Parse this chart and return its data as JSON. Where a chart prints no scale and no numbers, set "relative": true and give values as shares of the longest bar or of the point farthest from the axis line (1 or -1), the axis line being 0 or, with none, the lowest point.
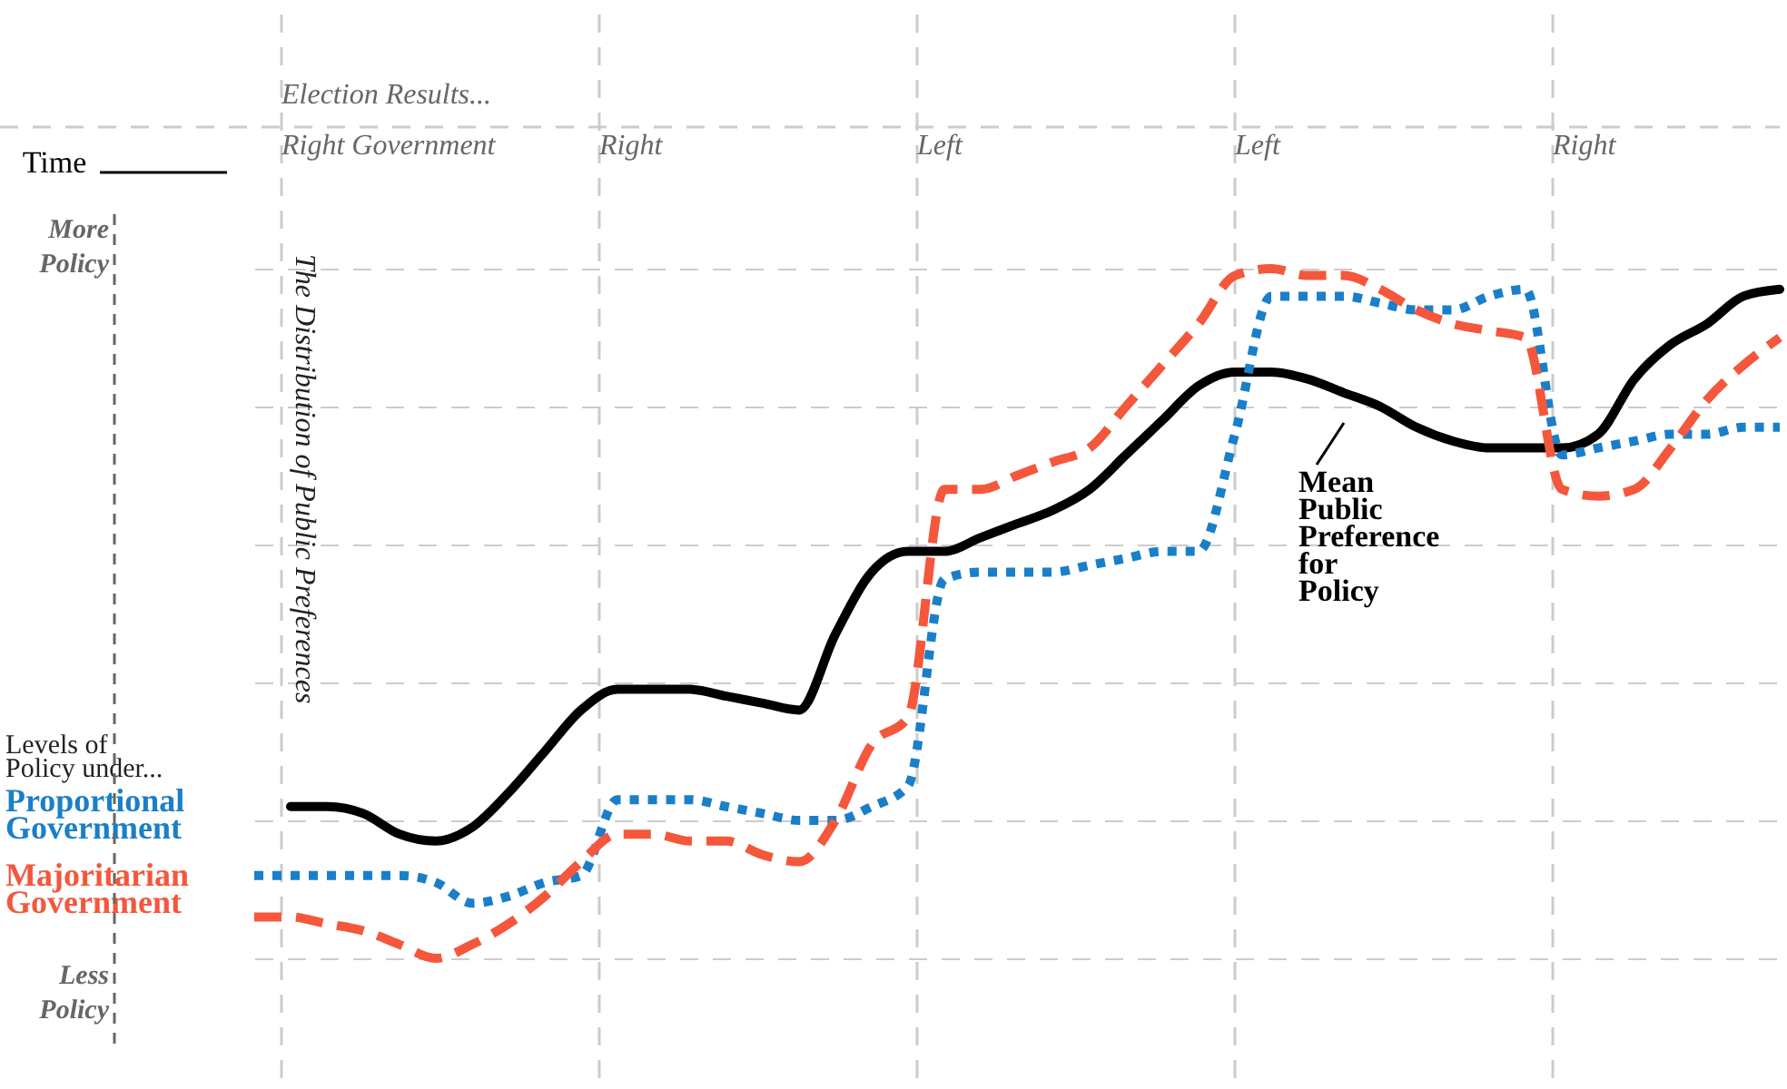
{
  "chart_data": {
    "type": "line",
    "relative": true,
    "grid": true,
    "categories": [
      null,
      null,
      null,
      null,
      null,
      null,
      null,
      null,
      null,
      null,
      null,
      null,
      null,
      null,
      null,
      null,
      null,
      null,
      null,
      null,
      null,
      null,
      null,
      null,
      null,
      null,
      null,
      null,
      null,
      null,
      null,
      null,
      null,
      null,
      null,
      null,
      null,
      null,
      null,
      null,
      null,
      null,
      null
    ],
    "series": [
      {
        "name": "Mean Public Preference for Policy",
        "color": "#000000",
        "line_style": "solid",
        "values": [
          null,
          0.22,
          0.22,
          0.21,
          0.18,
          0.17,
          0.19,
          0.24,
          0.3,
          0.36,
          0.39,
          0.39,
          0.39,
          0.38,
          0.37,
          0.36,
          0.47,
          0.56,
          0.59,
          0.59,
          0.61,
          0.63,
          0.65,
          0.68,
          0.73,
          0.78,
          0.83,
          0.85,
          0.85,
          0.84,
          0.82,
          0.8,
          0.77,
          0.75,
          0.74,
          0.74,
          0.74,
          0.76,
          0.84,
          0.89,
          0.92,
          0.96,
          0.97
        ]
      },
      {
        "name": "Proportional Government",
        "color": "#1a7fc8",
        "line_style": "dotted",
        "values": [
          0.12,
          0.12,
          0.12,
          0.12,
          0.12,
          0.11,
          0.08,
          0.09,
          0.11,
          0.12,
          0.23,
          0.23,
          0.23,
          0.22,
          0.21,
          0.2,
          0.2,
          0.22,
          0.25,
          0.55,
          0.56,
          0.56,
          0.56,
          0.57,
          0.58,
          0.59,
          0.59,
          0.76,
          0.96,
          0.96,
          0.96,
          0.95,
          0.94,
          0.94,
          0.96,
          0.97,
          0.73,
          0.74,
          0.75,
          0.76,
          0.76,
          0.77,
          0.77
        ]
      },
      {
        "name": "Majoritarian Government",
        "color": "#f4573c",
        "line_style": "dashed",
        "values": [
          0.06,
          0.06,
          0.05,
          0.04,
          0.02,
          0,
          0.02,
          0.05,
          0.09,
          0.14,
          0.18,
          0.18,
          0.17,
          0.17,
          0.15,
          0.14,
          0.2,
          0.31,
          0.35,
          0.68,
          0.68,
          0.7,
          0.72,
          0.74,
          0.8,
          0.86,
          0.92,
          0.99,
          1,
          0.99,
          0.99,
          0.97,
          0.94,
          0.92,
          0.91,
          0.9,
          0.68,
          0.67,
          0.68,
          0.74,
          0.81,
          0.86,
          0.9
        ]
      }
    ],
    "annotations": [
      "Election Results...",
      "Right Government",
      "Right",
      "Left",
      "Left",
      "Right",
      "Time",
      "More Policy",
      "Levels of Policy under...",
      "Less Policy",
      "The Distribution of Public Preferences"
    ]
  }
}
